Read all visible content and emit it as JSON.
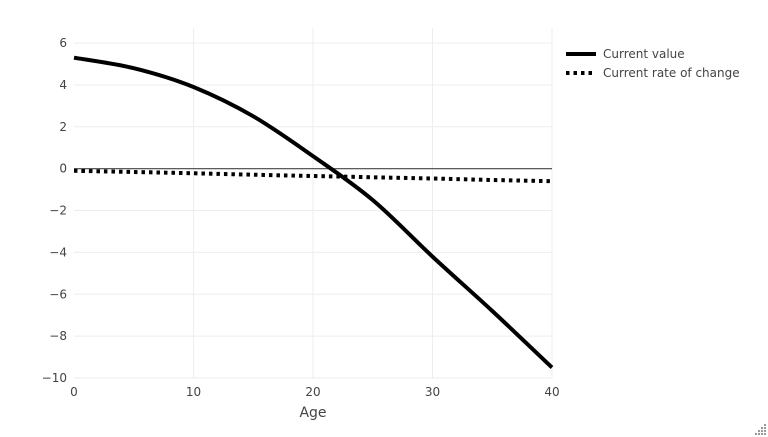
{
  "chart": {
    "xaxis_title": "Age",
    "y_tick_labels": [
      "6",
      "4",
      "2",
      "0",
      "−2",
      "−4",
      "−6",
      "−8",
      "−10"
    ],
    "x_tick_labels": [
      "0",
      "10",
      "20",
      "30",
      "40"
    ]
  },
  "chart_data": {
    "type": "line",
    "title": "",
    "xlabel": "Age",
    "ylabel": "",
    "x": [
      0,
      5,
      10,
      15,
      20,
      25,
      30,
      35,
      40
    ],
    "series": [
      {
        "name": "Current value",
        "style": "solid",
        "color": "#000000",
        "values": [
          5.3,
          4.8,
          3.9,
          2.5,
          0.6,
          -1.5,
          -4.2,
          -6.8,
          -9.5
        ]
      },
      {
        "name": "Current rate of change",
        "style": "dotted",
        "color": "#000000",
        "values": [
          -0.1,
          -0.16,
          -0.22,
          -0.29,
          -0.35,
          -0.41,
          -0.47,
          -0.54,
          -0.6
        ]
      }
    ],
    "xlim": [
      0,
      40
    ],
    "ylim": [
      -10,
      6.72
    ],
    "x_tick_values": [
      0,
      10,
      20,
      30,
      40
    ],
    "y_tick_values": [
      6,
      4,
      2,
      0,
      -2,
      -4,
      -6,
      -8,
      -10
    ],
    "x_grid_values": [
      10,
      20,
      30,
      40
    ],
    "grid": true,
    "legend_position": "top-right",
    "zero_line": true,
    "colors": {
      "line": "#000000",
      "grid": "#ededed",
      "zero_line": "#444444",
      "tick_text": "#444444",
      "background": "#ffffff",
      "grip": "#999999"
    }
  }
}
